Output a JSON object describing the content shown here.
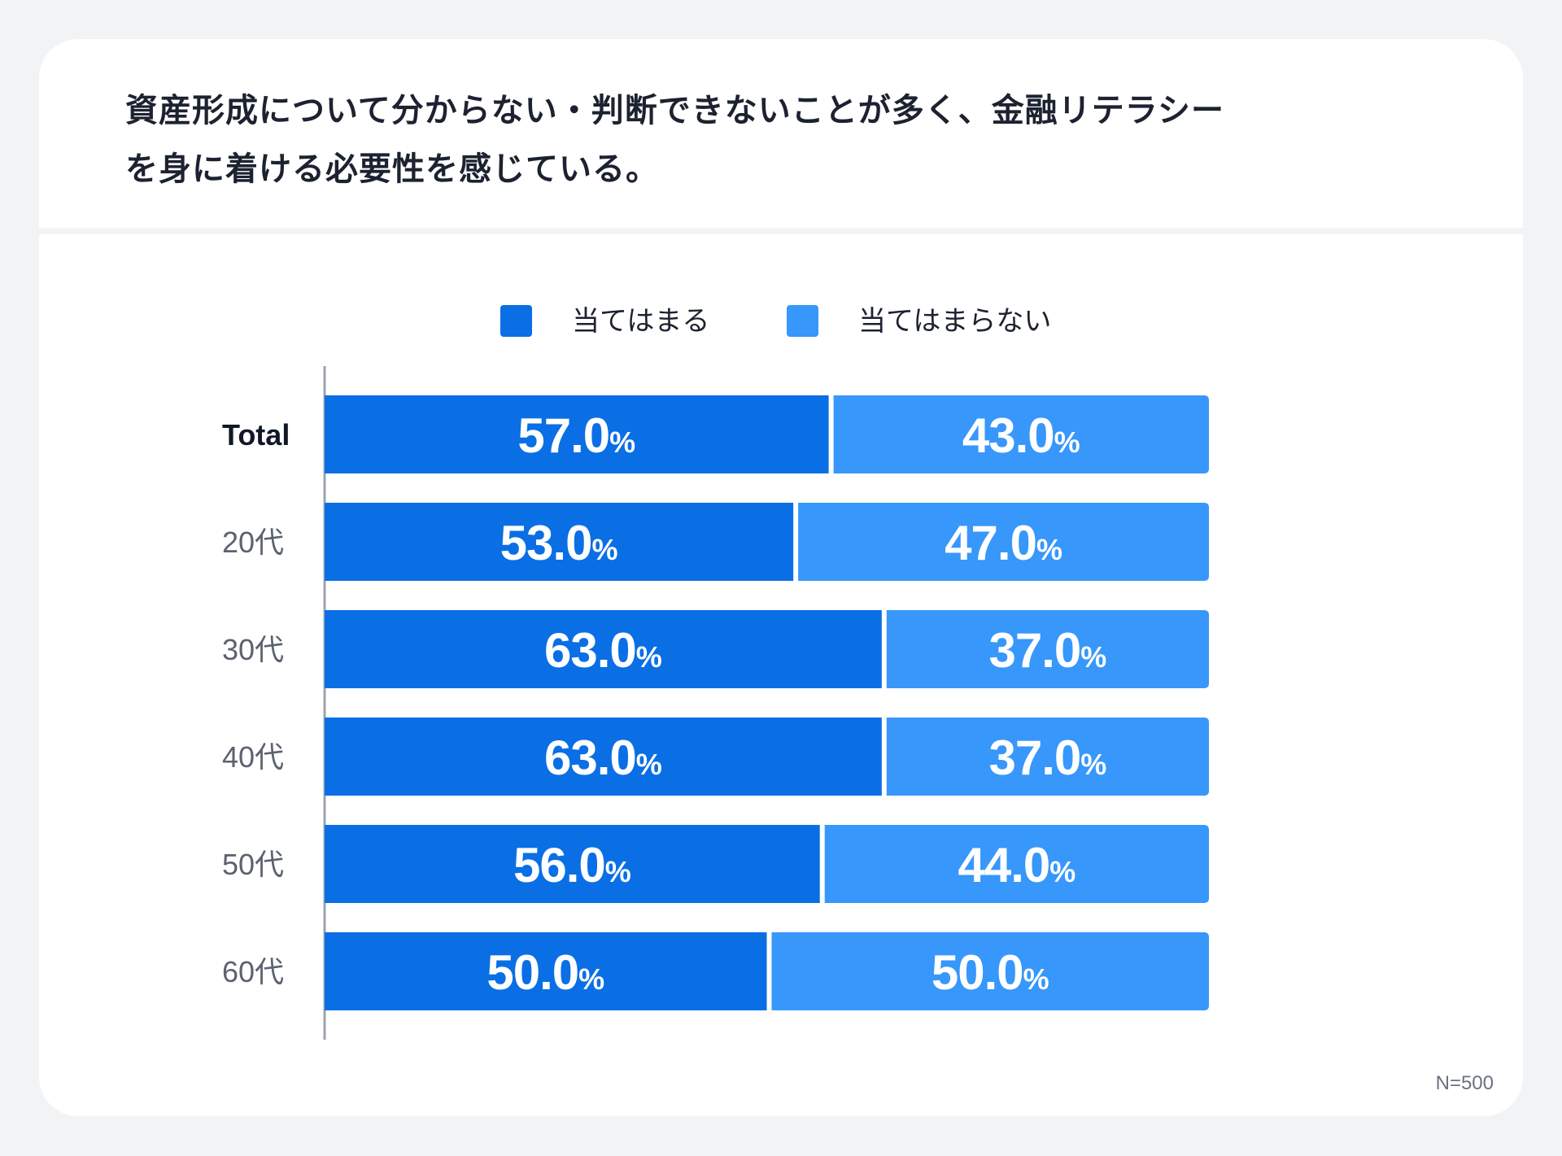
{
  "title_line1": "資産形成について分からない・判断できないことが多く、金融リテラシー",
  "title_line2": "を身に着ける必要性を感じている。",
  "footnote": "N=500",
  "chart_data": {
    "type": "bar",
    "orientation": "horizontal",
    "stacked": true,
    "title": "資産形成について分からない・判断できないことが多く、金融リテラシーを身に着ける必要性を感じている。",
    "categories": [
      "Total",
      "20代",
      "30代",
      "40代",
      "50代",
      "60代"
    ],
    "series": [
      {
        "name": "当てはまる",
        "values": [
          57.0,
          53.0,
          63.0,
          63.0,
          56.0,
          50.0
        ],
        "color": "#0a6fe5"
      },
      {
        "name": "当てはまらない",
        "values": [
          43.0,
          47.0,
          37.0,
          37.0,
          44.0,
          50.0
        ],
        "color": "#3797fb"
      }
    ],
    "value_unit": "%",
    "xlim": [
      0,
      100
    ],
    "legend_position": "top-center",
    "grid": false
  }
}
